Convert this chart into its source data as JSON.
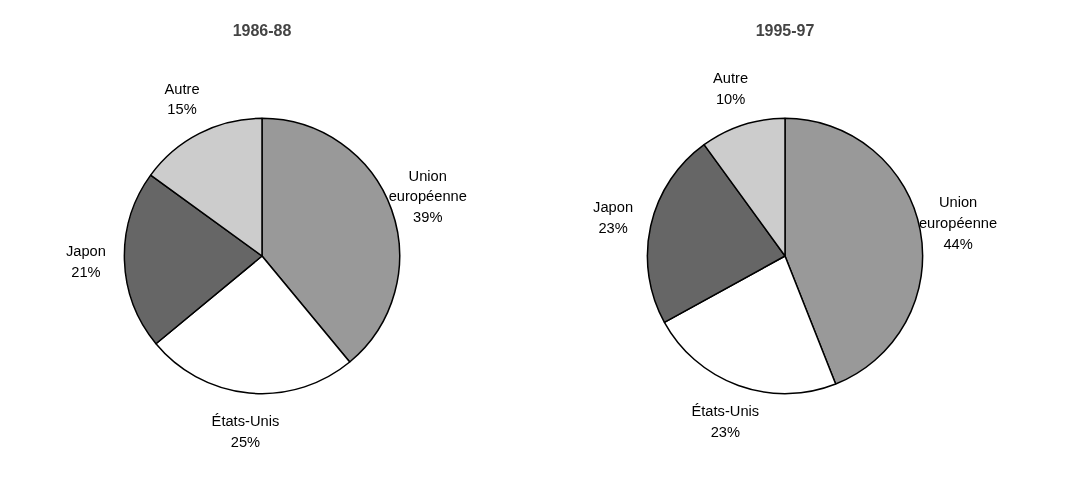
{
  "chart_data": [
    {
      "type": "pie",
      "title": "1986-88",
      "categories": [
        "Union européenne",
        "États-Unis",
        "Japon",
        "Autre"
      ],
      "values": [
        39,
        25,
        21,
        15
      ],
      "value_labels": [
        "39%",
        "25%",
        "21%",
        "15%"
      ],
      "colors": [
        "#999999",
        "#ffffff",
        "#666666",
        "#cccccc"
      ]
    },
    {
      "type": "pie",
      "title": "1995-97",
      "categories": [
        "Union européenne",
        "États-Unis",
        "Japon",
        "Autre"
      ],
      "values": [
        44,
        23,
        23,
        10
      ],
      "value_labels": [
        "44%",
        "23%",
        "23%",
        "10%"
      ],
      "colors": [
        "#999999",
        "#ffffff",
        "#666666",
        "#cccccc"
      ]
    }
  ]
}
